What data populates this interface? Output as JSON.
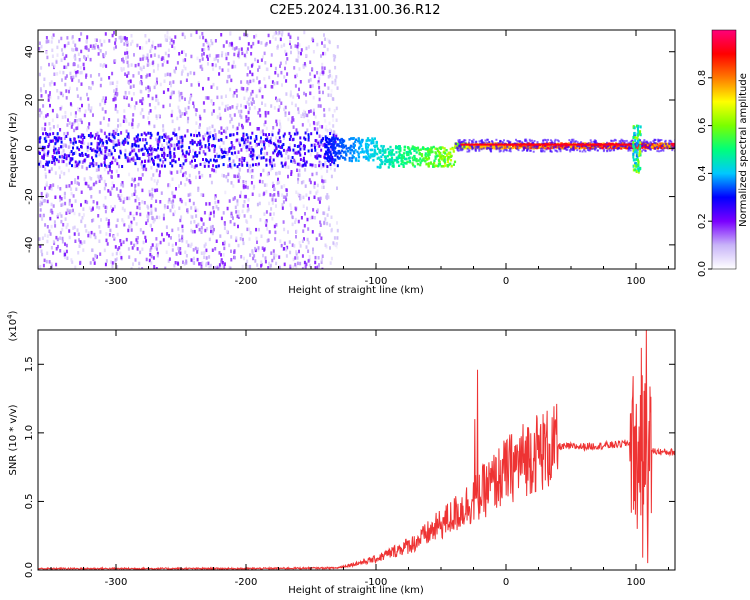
{
  "title": "C2E5.2024.131.00.36.R12",
  "chart_data": [
    {
      "type": "heatmap",
      "name": "spectrogram",
      "xlabel": "Height of straight line (km)",
      "ylabel": "Frequency (Hz)",
      "xlim": [
        -360,
        130
      ],
      "ylim": [
        -50,
        49
      ],
      "xticks": [
        -300,
        -200,
        -100,
        0,
        100
      ],
      "yticks": [
        -40,
        -20,
        0,
        20,
        40
      ],
      "colorbar": {
        "label": "Normalized spectral amplitude",
        "range": [
          0,
          1
        ],
        "ticks": [
          "0.0",
          "0.2",
          "0.4",
          "0.6",
          "0.8"
        ],
        "colors": [
          "#ffffff",
          "#c8b4f8",
          "#7a00ff",
          "#0000ff",
          "#00c8ff",
          "#00ff7a",
          "#7aff00",
          "#ffff00",
          "#ff7a00",
          "#ff0000",
          "#ff007a"
        ]
      },
      "features": [
        {
          "label": "scattered noise",
          "x_range": [
            -360,
            -130
          ],
          "freq_range": [
            -50,
            49
          ],
          "amplitude": 0.15
        },
        {
          "label": "signal trace",
          "x_range": [
            -140,
            130
          ],
          "frequency": 0,
          "amplitude_start": 0.3,
          "amplitude_end": 0.9
        },
        {
          "label": "feature near 100 km",
          "x": 100,
          "freq_range": [
            -10,
            10
          ],
          "amplitude": 0.6
        }
      ],
      "grid": false
    },
    {
      "type": "line",
      "name": "snr",
      "xlabel": "Height of straight line (km)",
      "ylabel": "SNR (10 * v/v)",
      "ylabel_multiplier": "(x10",
      "ylabel_exponent": "4",
      "ylabel_close": ")",
      "xlim": [
        -360,
        130
      ],
      "ylim": [
        0,
        17500
      ],
      "xticks": [
        -300,
        -200,
        -100,
        0,
        100
      ],
      "yticks": [
        "0.0",
        "0.5",
        "1.0",
        "1.5"
      ],
      "ytick_values": [
        0,
        5000,
        10000,
        15000
      ],
      "color": "#ee3333",
      "envelope": {
        "x": [
          -360,
          -200,
          -130,
          -100,
          -70,
          -40,
          -20,
          0,
          20,
          40,
          60,
          80,
          90,
          95,
          100,
          105,
          110,
          120,
          130
        ],
        "y": [
          100,
          100,
          150,
          800,
          2000,
          4000,
          5500,
          7200,
          8500,
          9000,
          9000,
          9100,
          9200,
          9300,
          9000,
          8900,
          8700,
          8600,
          8600
        ]
      },
      "spikes": [
        {
          "x": -22,
          "y": 14600
        },
        {
          "x": -24,
          "y": 11000
        },
        {
          "x": 100,
          "y": 9800
        },
        {
          "x": 101,
          "y": 3000
        },
        {
          "x": 104,
          "y": 16200
        },
        {
          "x": 105,
          "y": 900
        },
        {
          "x": 108,
          "y": 17500
        },
        {
          "x": 109,
          "y": 500
        }
      ],
      "grid": false
    }
  ]
}
